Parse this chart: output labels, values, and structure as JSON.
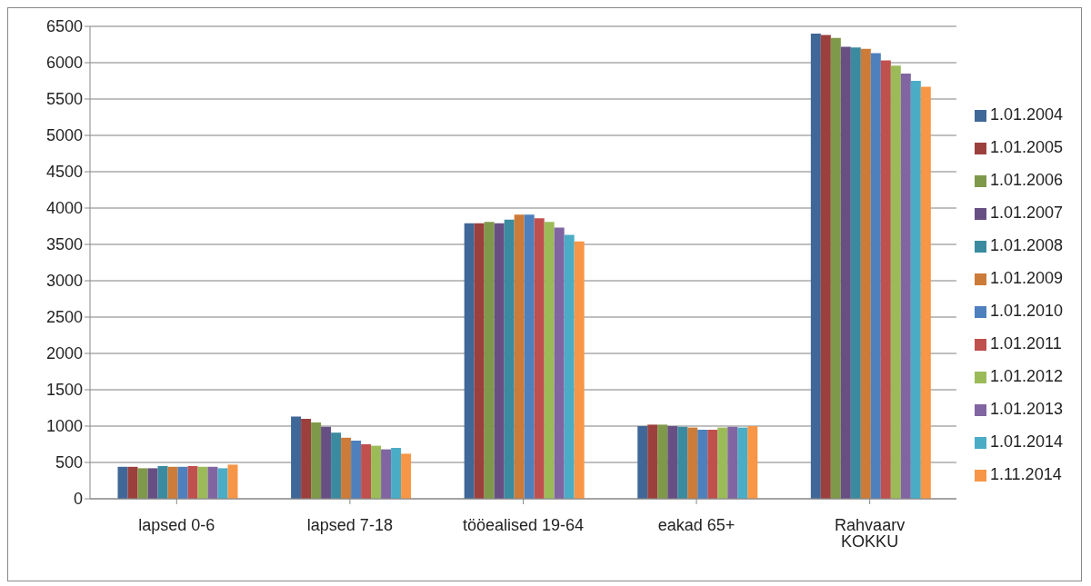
{
  "chart_data": {
    "type": "bar",
    "categories": [
      "lapsed 0-6",
      "lapsed 7-18",
      "tööealised 19-64",
      "eakad 65+",
      "Rahvaarv KOKKU"
    ],
    "series": [
      {
        "name": "1.01.2004",
        "color": "#3f6797",
        "values": [
          440,
          1130,
          3790,
          1000,
          6400
        ]
      },
      {
        "name": "1.01.2005",
        "color": "#9c403d",
        "values": [
          440,
          1100,
          3790,
          1020,
          6380
        ]
      },
      {
        "name": "1.01.2006",
        "color": "#7f994a",
        "values": [
          420,
          1050,
          3810,
          1020,
          6340
        ]
      },
      {
        "name": "1.01.2007",
        "color": "#674f83",
        "values": [
          420,
          990,
          3790,
          1000,
          6220
        ]
      },
      {
        "name": "1.01.2008",
        "color": "#3a8ba0",
        "values": [
          450,
          910,
          3840,
          990,
          6210
        ]
      },
      {
        "name": "1.01.2009",
        "color": "#cc7b38",
        "values": [
          440,
          840,
          3910,
          980,
          6190
        ]
      },
      {
        "name": "1.01.2010",
        "color": "#4d80bd",
        "values": [
          440,
          800,
          3910,
          950,
          6130
        ]
      },
      {
        "name": "1.01.2011",
        "color": "#c0504e",
        "values": [
          450,
          750,
          3860,
          950,
          6030
        ]
      },
      {
        "name": "1.01.2012",
        "color": "#9bbb59",
        "values": [
          440,
          730,
          3810,
          980,
          5960
        ]
      },
      {
        "name": "1.01.2013",
        "color": "#8165a2",
        "values": [
          440,
          680,
          3730,
          990,
          5850
        ]
      },
      {
        "name": "1.01.2014",
        "color": "#4bacc6",
        "values": [
          420,
          700,
          3630,
          980,
          5750
        ]
      },
      {
        "name": "1.11.2014",
        "color": "#f79646",
        "values": [
          470,
          620,
          3540,
          1000,
          5670
        ]
      }
    ],
    "ylim": [
      0,
      6500
    ],
    "yticks": [
      0,
      500,
      1000,
      1500,
      2000,
      2500,
      3000,
      3500,
      4000,
      4500,
      5000,
      5500,
      6000,
      6500
    ],
    "grid": "y",
    "legend": "right"
  }
}
